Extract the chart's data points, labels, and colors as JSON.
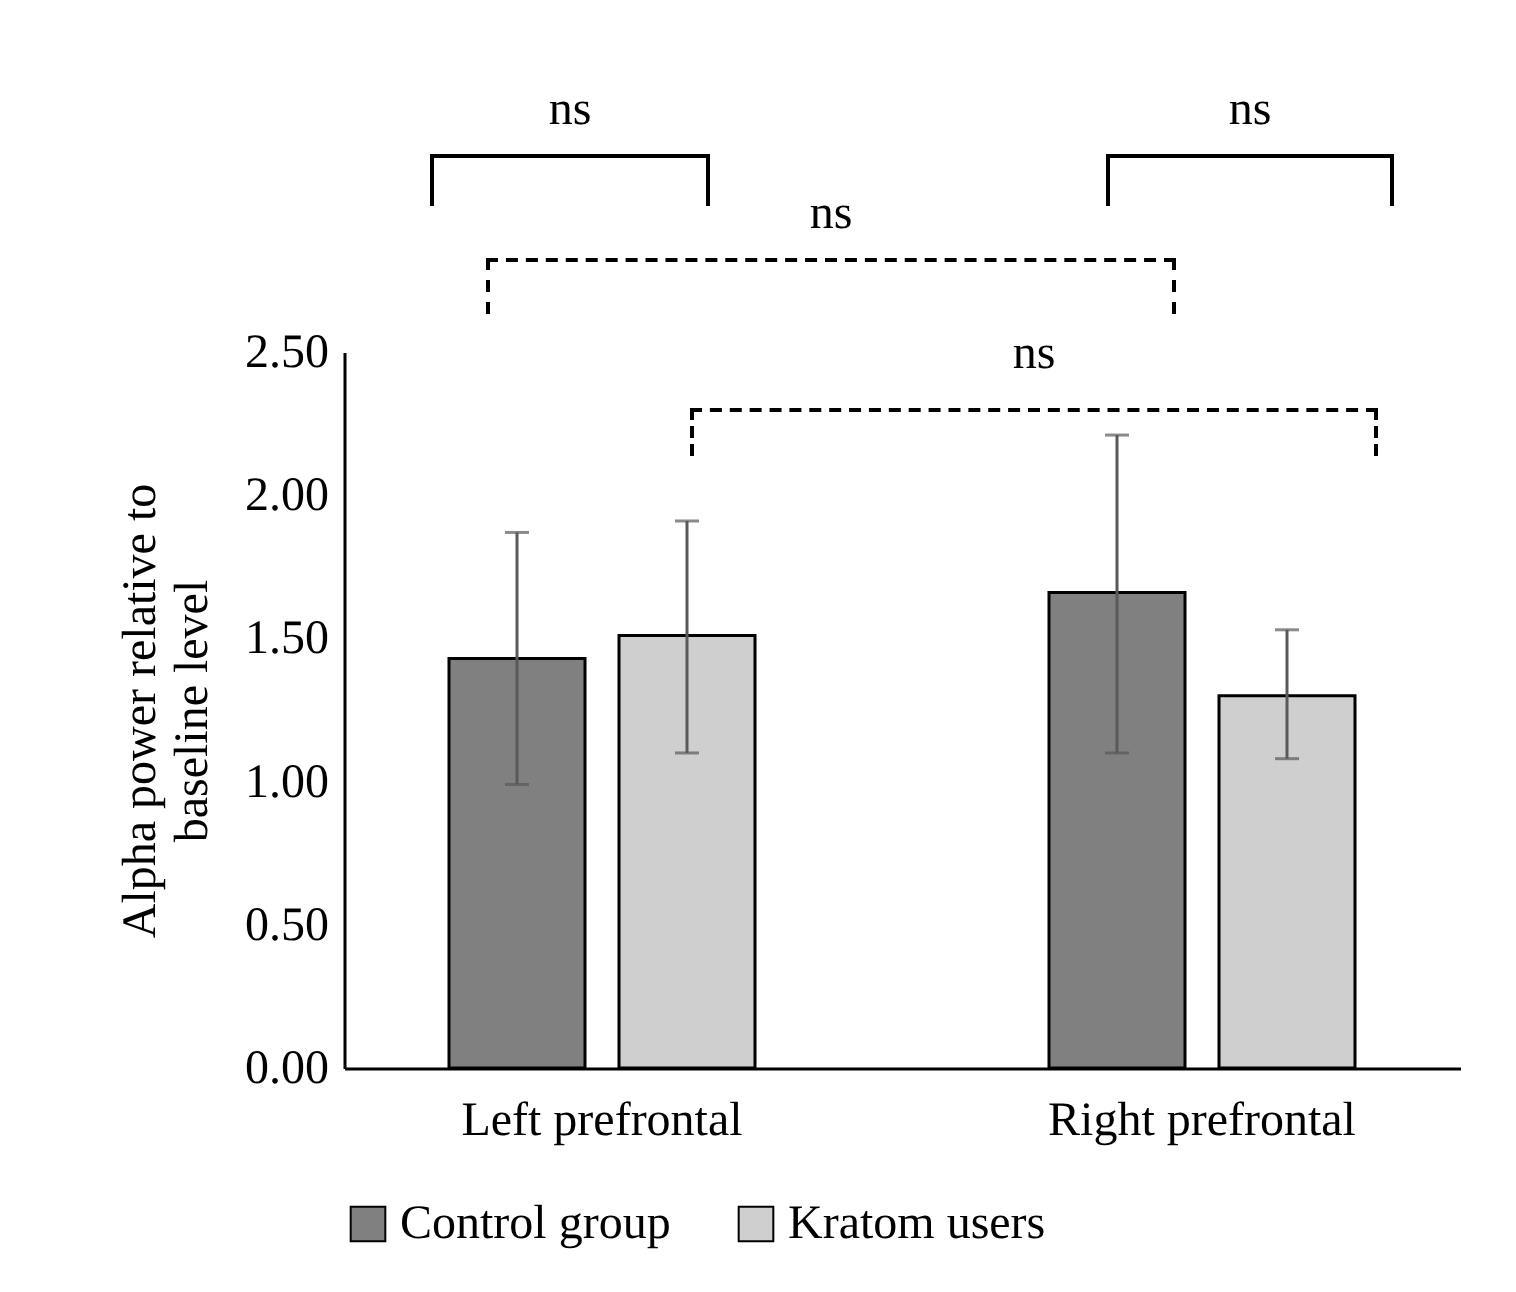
{
  "chart_data": {
    "type": "bar",
    "ylabel": "Alpha power relative to baseline level",
    "categories": [
      "Left prefrontal",
      "Right prefrontal"
    ],
    "series": [
      {
        "name": "Control group",
        "color": "#808080",
        "values": [
          1.43,
          1.66
        ],
        "errors": [
          [
            0.99,
            1.87
          ],
          [
            1.1,
            2.21
          ]
        ]
      },
      {
        "name": "Kratom users",
        "color": "#d0cfd0",
        "values": [
          1.51,
          1.3
        ],
        "errors": [
          [
            1.1,
            1.91
          ],
          [
            1.08,
            1.53
          ]
        ]
      }
    ],
    "ylim": [
      0,
      2.5
    ],
    "yticks": [
      {
        "value": 0,
        "label": "0.00"
      },
      {
        "value": 0.5,
        "label": "0.50"
      },
      {
        "value": 1,
        "label": "1.00"
      },
      {
        "value": 1.5,
        "label": "1.50"
      },
      {
        "value": 2,
        "label": "2.00"
      },
      {
        "value": 2.5,
        "label": "2.50"
      }
    ],
    "grid": false,
    "legend": "bottom",
    "annotations": [
      "ns",
      "ns",
      "ns",
      "ns"
    ]
  }
}
